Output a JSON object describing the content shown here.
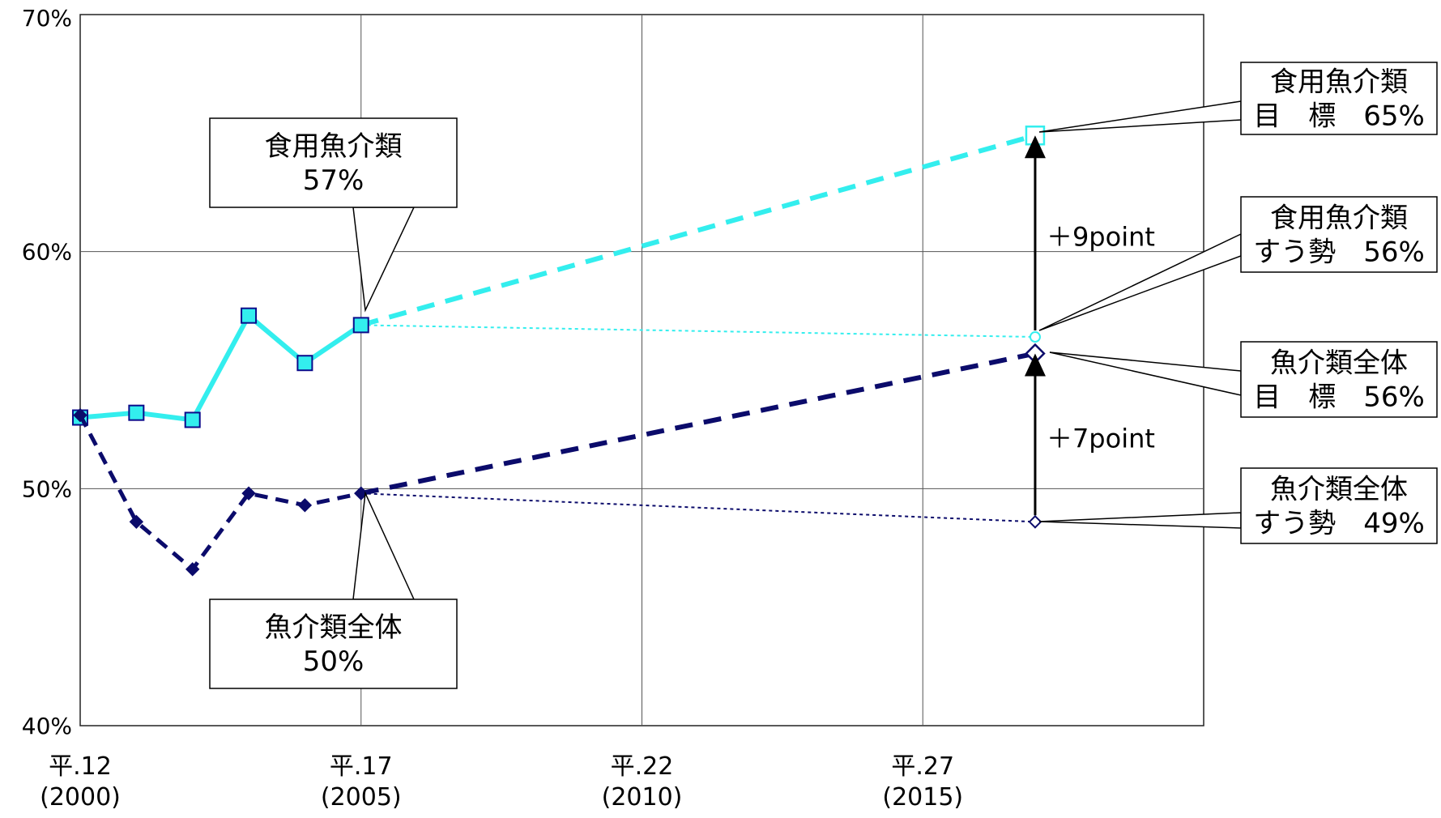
{
  "chart_data": {
    "type": "line",
    "x_range": [
      2000,
      2020
    ],
    "ylim": [
      40,
      70
    ],
    "grid": true,
    "y_ticks": [
      {
        "value": 40,
        "label": "40%"
      },
      {
        "value": 50,
        "label": "50%"
      },
      {
        "value": 60,
        "label": "60%"
      },
      {
        "value": 70,
        "label": "70%"
      }
    ],
    "x_ticks": [
      {
        "value": 2000,
        "label1": "平.12",
        "label2": "(2000)"
      },
      {
        "value": 2005,
        "label1": "平.17",
        "label2": "(2005)"
      },
      {
        "value": 2010,
        "label1": "平.22",
        "label2": "(2010)"
      },
      {
        "value": 2015,
        "label1": "平.27",
        "label2": "(2015)"
      }
    ],
    "series": [
      {
        "color": "#33eeee",
        "marker": "square",
        "x": [
          2000,
          2001,
          2002,
          2003,
          2004,
          2005
        ],
        "values": [
          53.0,
          53.2,
          52.9,
          57.3,
          55.3,
          56.9
        ]
      },
      {
        "color": "#0b0b6b",
        "marker": "diamond",
        "x": [
          2000,
          2001,
          2002,
          2003,
          2004,
          2005
        ],
        "values": [
          53.1,
          48.6,
          46.6,
          49.8,
          49.3,
          49.8
        ]
      }
    ],
    "projections": [
      {
        "color": "#33eeee",
        "style": "dashed",
        "from": [
          2005,
          56.9
        ],
        "to": [
          2017,
          64.9
        ],
        "end_marker": "square-open"
      },
      {
        "color": "#33eeee",
        "style": "dotted",
        "from": [
          2005,
          56.9
        ],
        "to": [
          2017,
          56.4
        ],
        "end_marker": "circle-open"
      },
      {
        "color": "#0b0b6b",
        "style": "dashed",
        "from": [
          2005,
          49.8
        ],
        "to": [
          2017,
          55.7
        ],
        "end_marker": "diamond-open"
      },
      {
        "color": "#0b0b6b",
        "style": "dotted",
        "from": [
          2005,
          49.8
        ],
        "to": [
          2017,
          48.6
        ],
        "end_marker": "diamond-open-small"
      }
    ],
    "arrows": [
      {
        "x": 2017,
        "from": 56.4,
        "to": 64.9,
        "label": "＋9point"
      },
      {
        "x": 2017,
        "from": 48.6,
        "to": 55.7,
        "label": "＋7point"
      }
    ],
    "callouts": [
      {
        "id": "c1",
        "lines": [
          "食用魚介類",
          "57%"
        ],
        "target": [
          2005,
          56.9
        ]
      },
      {
        "id": "c2",
        "lines": [
          "魚介類全体",
          "50%"
        ],
        "target": [
          2005,
          49.8
        ]
      },
      {
        "id": "c3",
        "lines": [
          "食用魚介類",
          "目　標　65%"
        ],
        "target": [
          2017,
          64.9
        ]
      },
      {
        "id": "c4",
        "lines": [
          "食用魚介類",
          "すう勢　56%"
        ],
        "target": [
          2017,
          56.4
        ]
      },
      {
        "id": "c5",
        "lines": [
          "魚介類全体",
          "目　標　56%"
        ],
        "target": [
          2017,
          55.7
        ]
      },
      {
        "id": "c6",
        "lines": [
          "魚介類全体",
          "すう勢　49%"
        ],
        "target": [
          2017,
          48.6
        ]
      }
    ]
  }
}
